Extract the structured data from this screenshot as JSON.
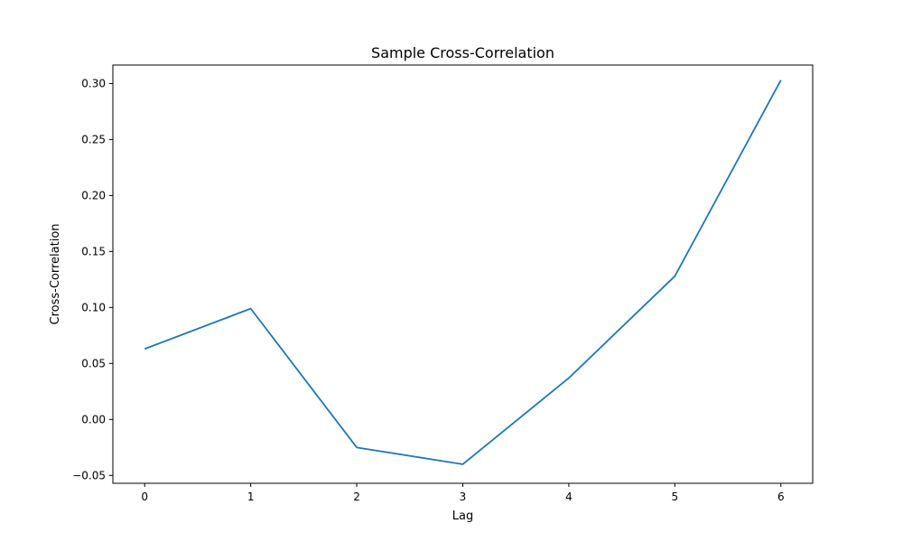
{
  "chart_data": {
    "type": "line",
    "title": "Sample Cross-Correlation",
    "xlabel": "Lag",
    "ylabel": "Cross-Correlation",
    "x": [
      0,
      1,
      2,
      3,
      4,
      5,
      6
    ],
    "series": [
      {
        "values": [
          0.063,
          0.099,
          -0.025,
          -0.04,
          0.037,
          0.128,
          0.303
        ],
        "color": "#1f77b4"
      }
    ],
    "xlim": [
      -0.3,
      6.3
    ],
    "ylim": [
      -0.057,
      0.3165
    ],
    "xticks": [
      0,
      1,
      2,
      3,
      4,
      5,
      6
    ],
    "xtick_labels": [
      "0",
      "1",
      "2",
      "3",
      "4",
      "5",
      "6"
    ],
    "yticks": [
      -0.05,
      0.0,
      0.05,
      0.1,
      0.15,
      0.2,
      0.25,
      0.3
    ],
    "ytick_labels": [
      "−0.05",
      "0.00",
      "0.05",
      "0.10",
      "0.15",
      "0.20",
      "0.25",
      "0.30"
    ],
    "grid": false,
    "legend": false
  }
}
